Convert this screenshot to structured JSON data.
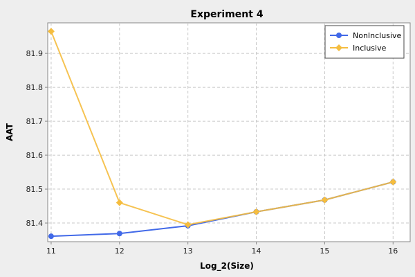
{
  "chart_data": {
    "type": "line",
    "title": "Experiment 4",
    "xlabel": "Log_2(Size)",
    "ylabel": "AAT",
    "x": [
      11,
      12,
      13,
      14,
      15,
      16
    ],
    "xlim": [
      10.95,
      16.25
    ],
    "ylim": [
      81.345,
      81.99
    ],
    "xticks": [
      11,
      12,
      13,
      14,
      15,
      16
    ],
    "yticks": [
      81.4,
      81.5,
      81.6,
      81.7,
      81.8,
      81.9
    ],
    "grid": true,
    "legend_position": "top-right",
    "series": [
      {
        "name": "NonInclusive",
        "values": [
          81.361,
          81.369,
          81.392,
          81.433,
          81.468,
          81.521
        ],
        "color": "#4169e8",
        "marker": "circle"
      },
      {
        "name": "Inclusive",
        "values": [
          81.965,
          81.46,
          81.395,
          81.433,
          81.468,
          81.521
        ],
        "color": "#f5bd3f",
        "marker": "diamond"
      }
    ]
  }
}
